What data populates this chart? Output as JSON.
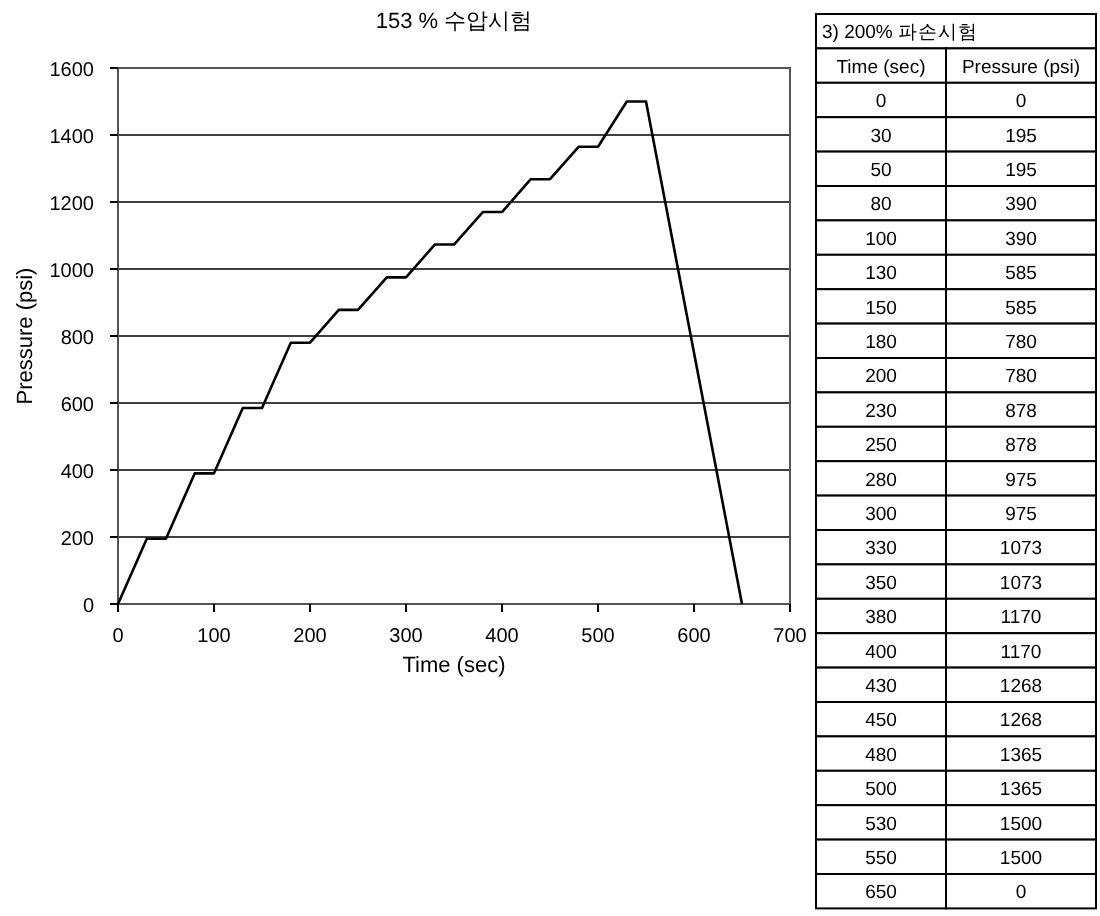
{
  "chart_data": [
    {
      "type": "line",
      "title": "153 % 수압시험",
      "xlabel": "Time (sec)",
      "ylabel": "Pressure (psi)",
      "x": [
        0,
        30,
        50,
        80,
        100,
        130,
        150,
        180,
        200,
        230,
        250,
        280,
        300,
        330,
        350,
        380,
        400,
        430,
        450,
        480,
        500,
        530,
        550,
        650
      ],
      "series": [
        {
          "color": "#000000",
          "values": [
            0,
            195,
            195,
            390,
            390,
            585,
            585,
            780,
            780,
            878,
            878,
            975,
            975,
            1073,
            1073,
            1170,
            1170,
            1268,
            1268,
            1365,
            1365,
            1500,
            1500,
            0
          ]
        }
      ],
      "xlim": [
        0,
        700
      ],
      "ylim": [
        0,
        1600
      ],
      "xticks": [
        0,
        100,
        200,
        300,
        400,
        500,
        600,
        700
      ],
      "yticks": [
        0,
        200,
        400,
        600,
        800,
        1000,
        1200,
        1400,
        1600
      ],
      "grid": "y",
      "marker": "none",
      "line_style": "solid"
    },
    {
      "type": "other",
      "title": "3) 200% 파손시험",
      "annotations": [
        "Time (sec)",
        "Pressure (psi)",
        "0",
        "0",
        "30",
        "195",
        "50",
        "195",
        "80",
        "390",
        "100",
        "390",
        "130",
        "585",
        "150",
        "585",
        "180",
        "780",
        "200",
        "780",
        "230",
        "878",
        "250",
        "878",
        "280",
        "975",
        "300",
        "975",
        "330",
        "1073",
        "350",
        "1073",
        "380",
        "1170",
        "400",
        "1170",
        "430",
        "1268",
        "450",
        "1268",
        "480",
        "1365",
        "500",
        "1365",
        "530",
        "1500",
        "550",
        "1500",
        "650",
        "0"
      ]
    }
  ]
}
